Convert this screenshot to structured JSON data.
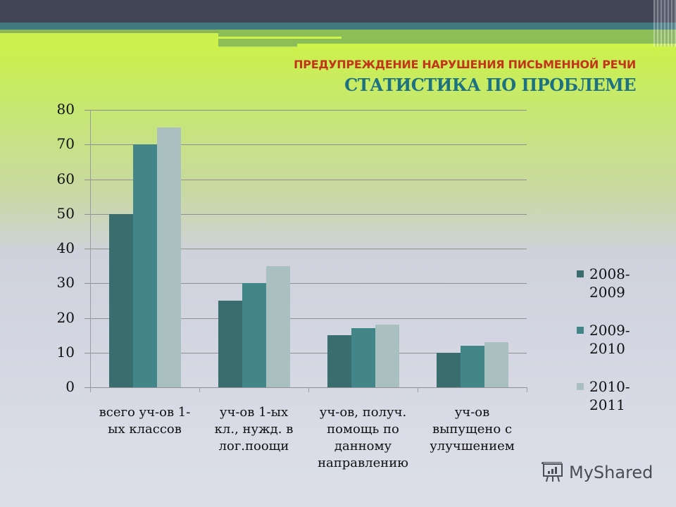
{
  "header": {
    "subtitle": "ПРЕДУПРЕЖДЕНИЕ НАРУШЕНИЯ ПИСЬМЕННОЙ РЕЧИ",
    "title": "СТАТИСТИКА ПО ПРОБЛЕМЕ"
  },
  "colors": {
    "series_2008_2009": "#3a6e6e",
    "series_2009_2010": "#42868a",
    "series_2010_2011": "#a9bfc0",
    "subtitle": "#c2351a",
    "title": "#1d7282"
  },
  "chart_data": {
    "type": "bar",
    "title": "СТАТИСТИКА ПО ПРОБЛЕМЕ",
    "subtitle": "ПРЕДУПРЕЖДЕНИЕ НАРУШЕНИЯ ПИСЬМЕННОЙ РЕЧИ",
    "categories": [
      "всего уч-ов 1-ых классов",
      "уч-ов 1-ых кл., нужд. в лог.поощи",
      "уч-ов, получ. помощь по данному направлению",
      "уч-ов выпущено с улучшением"
    ],
    "category_lines": [
      [
        "всего уч-ов 1-",
        "ых классов"
      ],
      [
        "уч-ов 1-ых",
        "кл., нужд. в",
        "лог.поощи"
      ],
      [
        "уч-ов, получ.",
        "помощь по",
        "данному",
        "направлению"
      ],
      [
        "уч-ов",
        "выпущено с",
        "улучшением"
      ]
    ],
    "series": [
      {
        "name": "2008-2009",
        "legend_lines": [
          "2008-",
          "2009"
        ],
        "color": "#3a6e6e",
        "values": [
          50,
          25,
          15,
          10
        ]
      },
      {
        "name": "2009-2010",
        "legend_lines": [
          "2009-",
          "2010"
        ],
        "color": "#42868a",
        "values": [
          70,
          30,
          17,
          12
        ]
      },
      {
        "name": "2010-2011",
        "legend_lines": [
          "2010-",
          "2011"
        ],
        "color": "#a9bfc0",
        "values": [
          75,
          35,
          18,
          13
        ]
      }
    ],
    "yticks": [
      0,
      10,
      20,
      30,
      40,
      50,
      60,
      70,
      80
    ],
    "ylim": [
      0,
      80
    ],
    "xlabel": "",
    "ylabel": "",
    "grid": true,
    "legend_position": "right"
  },
  "watermark": {
    "label": "MyShared",
    "icon": "presentation-chart-icon"
  }
}
